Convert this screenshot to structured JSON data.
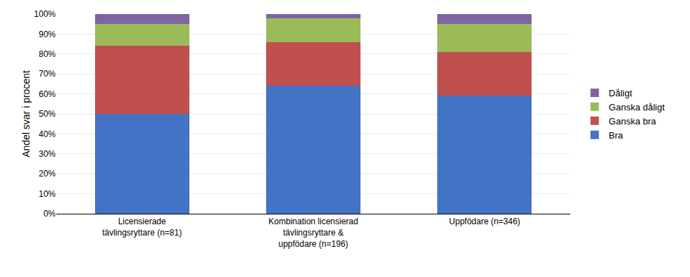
{
  "chart_data": {
    "type": "bar",
    "stacked": true,
    "categories": [
      "Licensierade\ntävlingsryttare (n=81)",
      "Kombination licensierad\ntävlingsryttare &\nuppfödare (n=196)",
      "Uppfödare (n=346)"
    ],
    "series": [
      {
        "name": "Bra",
        "color": "#4472C4",
        "values": [
          50,
          64,
          59
        ]
      },
      {
        "name": "Ganska bra",
        "color": "#C0504D",
        "values": [
          34,
          22,
          22
        ]
      },
      {
        "name": "Ganska dåligt",
        "color": "#9BBB59",
        "values": [
          11,
          12,
          14
        ]
      },
      {
        "name": "Dåligt",
        "color": "#8064A2",
        "values": [
          5,
          2,
          5
        ]
      }
    ],
    "y_label": "Andel svar i procent",
    "ylim": [
      0,
      100
    ],
    "yticks": [
      {
        "value": 0,
        "label": "0%"
      },
      {
        "value": 10,
        "label": "10%"
      },
      {
        "value": 20,
        "label": "20%"
      },
      {
        "value": 30,
        "label": "30%"
      },
      {
        "value": 40,
        "label": "40%"
      },
      {
        "value": 50,
        "label": "50%"
      },
      {
        "value": 60,
        "label": "60%"
      },
      {
        "value": 70,
        "label": "70%"
      },
      {
        "value": 80,
        "label": "80%"
      },
      {
        "value": 90,
        "label": "90%"
      },
      {
        "value": 100,
        "label": "100%"
      }
    ],
    "grid": true,
    "legend": "right"
  }
}
